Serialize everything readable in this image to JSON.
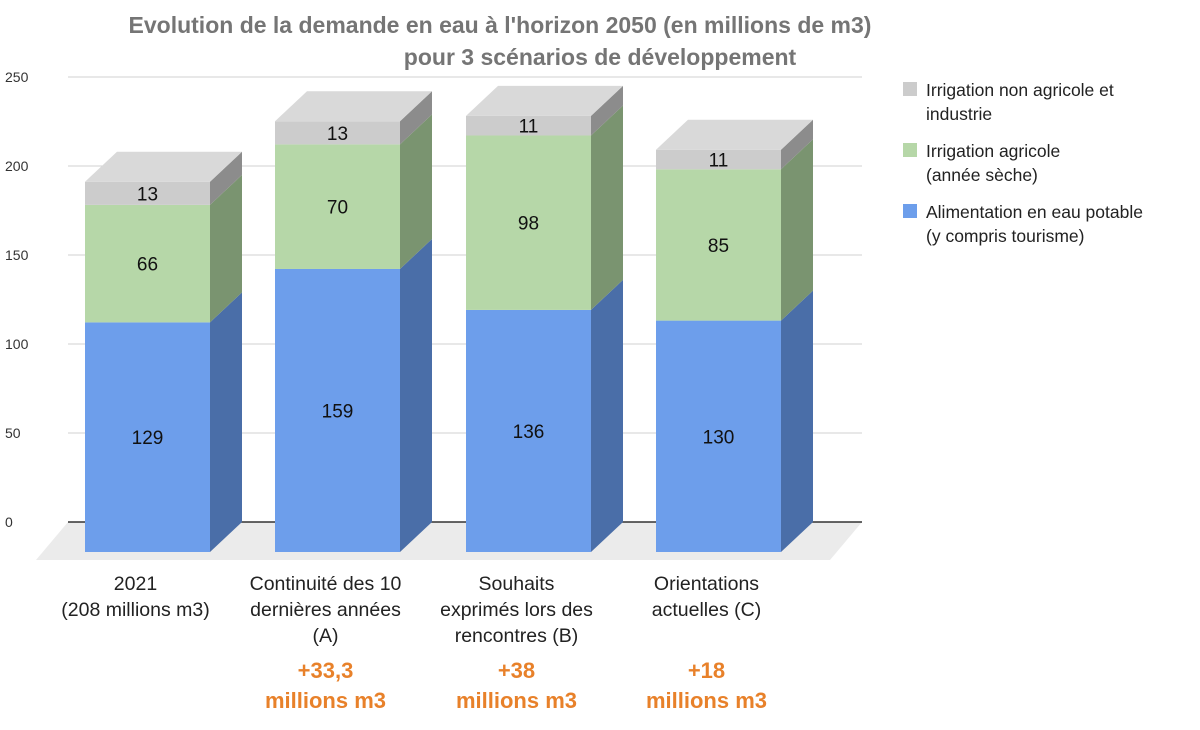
{
  "chart_data": {
    "type": "bar",
    "stacked": true,
    "three_d": true,
    "title_lines": [
      "Evolution de la demande en eau à l'horizon 2050 (en millions de m3)",
      "pour 3 scénarios de développement"
    ],
    "categories": [
      [
        "2021",
        "(208 millions m3)"
      ],
      [
        "Continuité des 10",
        "dernières années",
        "(A)"
      ],
      [
        "Souhaits",
        "exprimés lors des",
        "rencontres (B)"
      ],
      [
        "Orientations",
        "actuelles (C)"
      ]
    ],
    "annotations": [
      [],
      [
        "+33,3",
        "millions m3"
      ],
      [
        "+38",
        "millions m3"
      ],
      [
        "+18",
        "millions m3"
      ]
    ],
    "series": [
      {
        "name_lines": [
          "Alimentation en eau potable",
          "(y compris tourisme)"
        ],
        "values": [
          129,
          159,
          136,
          130
        ],
        "color": "#6d9eeb",
        "side_color": "#4a6ea8",
        "top_color": "#7aa8ee"
      },
      {
        "name_lines": [
          "Irrigation agricole",
          "(année sèche)"
        ],
        "values": [
          66,
          70,
          98,
          85
        ],
        "color": "#b6d7a8",
        "side_color": "#7a9470",
        "top_color": "#c4e0b8"
      },
      {
        "name_lines": [
          "Irrigation non agricole et",
          "industrie"
        ],
        "values": [
          13,
          13,
          11,
          11
        ],
        "color": "#cccccc",
        "side_color": "#8c8c8c",
        "top_color": "#d9d9d9"
      }
    ],
    "yticks": [
      "0",
      "50",
      "100",
      "150",
      "200",
      "250"
    ],
    "ylim": [
      0,
      250
    ],
    "grid": true,
    "legend_position": "right",
    "annotation_color": "#e8812a"
  }
}
